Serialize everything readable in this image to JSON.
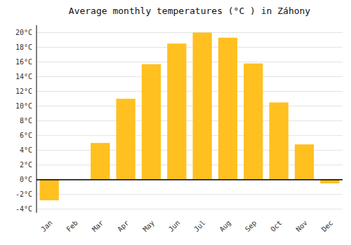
{
  "chart_data": {
    "type": "bar",
    "title": "Average monthly temperatures (°C ) in Záhony",
    "categories": [
      "Jan",
      "Feb",
      "Mar",
      "Apr",
      "May",
      "Jun",
      "Jul",
      "Aug",
      "Sep",
      "Oct",
      "Nov",
      "Dec"
    ],
    "values": [
      -2.8,
      0.0,
      5.0,
      11.0,
      15.7,
      18.5,
      20.0,
      19.3,
      15.8,
      10.5,
      4.8,
      -0.5
    ],
    "color": "#FFC020",
    "ylim": [
      -4.5,
      21.0
    ],
    "yticks": [
      {
        "value": -4,
        "label": "-4°C"
      },
      {
        "value": -2,
        "label": "-2°C"
      },
      {
        "value": 0,
        "label": "0°C"
      },
      {
        "value": 2,
        "label": "2°C"
      },
      {
        "value": 4,
        "label": "4°C"
      },
      {
        "value": 6,
        "label": "6°C"
      },
      {
        "value": 8,
        "label": "8°C"
      },
      {
        "value": 10,
        "label": "10°C"
      },
      {
        "value": 12,
        "label": "12°C"
      },
      {
        "value": 14,
        "label": "14°C"
      },
      {
        "value": 16,
        "label": "16°C"
      },
      {
        "value": 18,
        "label": "18°C"
      },
      {
        "value": 20,
        "label": "20°C"
      }
    ],
    "grid": true
  }
}
